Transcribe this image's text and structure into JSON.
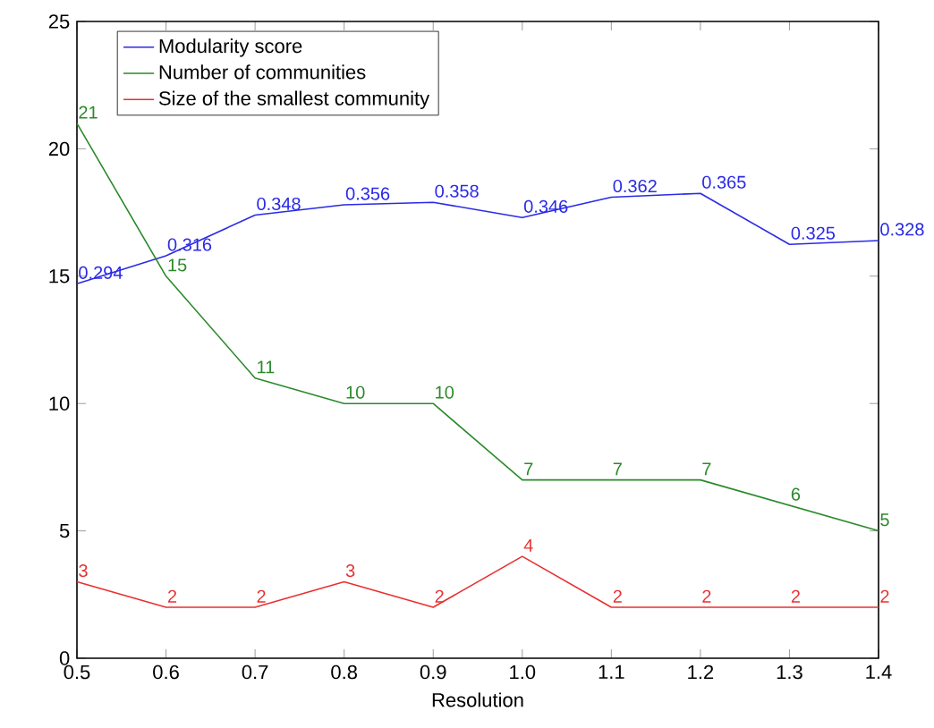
{
  "chart_data": {
    "type": "line",
    "xlabel": "Resolution",
    "x": [
      0.5,
      0.6,
      0.7,
      0.8,
      0.9,
      1.0,
      1.1,
      1.2,
      1.3,
      1.4
    ],
    "series": [
      {
        "name": "Modularity score",
        "color": "#2a2ae8",
        "axis": "y2",
        "values": [
          0.294,
          0.316,
          0.348,
          0.356,
          0.358,
          0.346,
          0.362,
          0.365,
          0.325,
          0.328
        ],
        "value_labels": [
          "0.294",
          "0.316",
          "0.348",
          "0.356",
          "0.358",
          "0.346",
          "0.362",
          "0.365",
          "0.325",
          "0.328"
        ]
      },
      {
        "name": "Number of communities",
        "color": "#2a8a2a",
        "values": [
          21,
          15,
          11,
          10,
          10,
          7,
          7,
          7,
          6,
          5
        ],
        "value_labels": [
          "21",
          "15",
          "11",
          "10",
          "10",
          "7",
          "7",
          "7",
          "6",
          "5"
        ]
      },
      {
        "name": "Size of the smallest community",
        "color": "#e83030",
        "values": [
          3,
          2,
          2,
          3,
          2,
          4,
          2,
          2,
          2,
          2
        ],
        "value_labels": [
          "3",
          "2",
          "2",
          "3",
          "2",
          "4",
          "2",
          "2",
          "2",
          "2"
        ]
      }
    ],
    "xlim": [
      0.5,
      1.4
    ],
    "xticks": [
      0.5,
      0.6,
      0.7,
      0.8,
      0.9,
      {
        "value": 1.0,
        "label": "1.0"
      },
      1.1,
      1.2,
      1.3,
      1.4
    ],
    "y2lim": [
      0,
      0.5
    ],
    "ylim": [
      0,
      25
    ],
    "yticks": [
      0,
      5,
      10,
      15,
      20,
      25
    ],
    "grid": false,
    "legend": "top left",
    "marker": "none",
    "line_style": "solid"
  }
}
